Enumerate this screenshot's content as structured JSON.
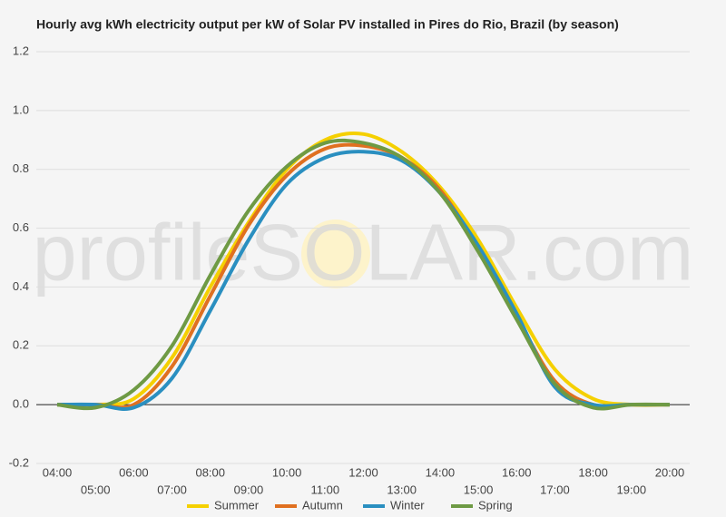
{
  "chart_data": {
    "type": "line",
    "title": "Hourly avg kWh electricity output per kW of Solar PV installed in Pires do Rio, Brazil (by season)",
    "watermark": "profileSOLAR.com",
    "categories": [
      "04:00",
      "05:00",
      "06:00",
      "07:00",
      "08:00",
      "09:00",
      "10:00",
      "11:00",
      "12:00",
      "13:00",
      "14:00",
      "15:00",
      "16:00",
      "17:00",
      "18:00",
      "19:00",
      "20:00"
    ],
    "series": [
      {
        "name": "Summer",
        "color": "#f5d000",
        "values": [
          0,
          0,
          0.02,
          0.16,
          0.4,
          0.62,
          0.8,
          0.9,
          0.92,
          0.86,
          0.74,
          0.56,
          0.33,
          0.12,
          0.02,
          0,
          0
        ]
      },
      {
        "name": "Autumn",
        "color": "#e07020",
        "values": [
          0,
          0,
          0,
          0.13,
          0.37,
          0.61,
          0.78,
          0.87,
          0.88,
          0.84,
          0.73,
          0.53,
          0.3,
          0.08,
          0,
          0,
          0
        ]
      },
      {
        "name": "Winter",
        "color": "#2a8fc0",
        "values": [
          0,
          0,
          -0.01,
          0.09,
          0.32,
          0.56,
          0.75,
          0.84,
          0.86,
          0.83,
          0.72,
          0.54,
          0.31,
          0.06,
          0,
          0,
          0
        ]
      },
      {
        "name": "Spring",
        "color": "#6e9a44",
        "values": [
          0,
          -0.01,
          0.05,
          0.2,
          0.44,
          0.66,
          0.81,
          0.89,
          0.89,
          0.84,
          0.72,
          0.52,
          0.29,
          0.07,
          -0.01,
          0,
          0
        ]
      }
    ],
    "ylim": [
      -0.2,
      1.2
    ],
    "yticks": [
      {
        "value": -0.2,
        "label": "-0.2"
      },
      {
        "value": 0,
        "label": "0.0"
      },
      {
        "value": 0.2,
        "label": "0.2"
      },
      {
        "value": 0.4,
        "label": "0.4"
      },
      {
        "value": 0.6,
        "label": "0.6"
      },
      {
        "value": 0.8,
        "label": "0.8"
      },
      {
        "value": 1,
        "label": "1.0"
      },
      {
        "value": 1.2,
        "label": "1.2"
      }
    ],
    "grid": true
  }
}
